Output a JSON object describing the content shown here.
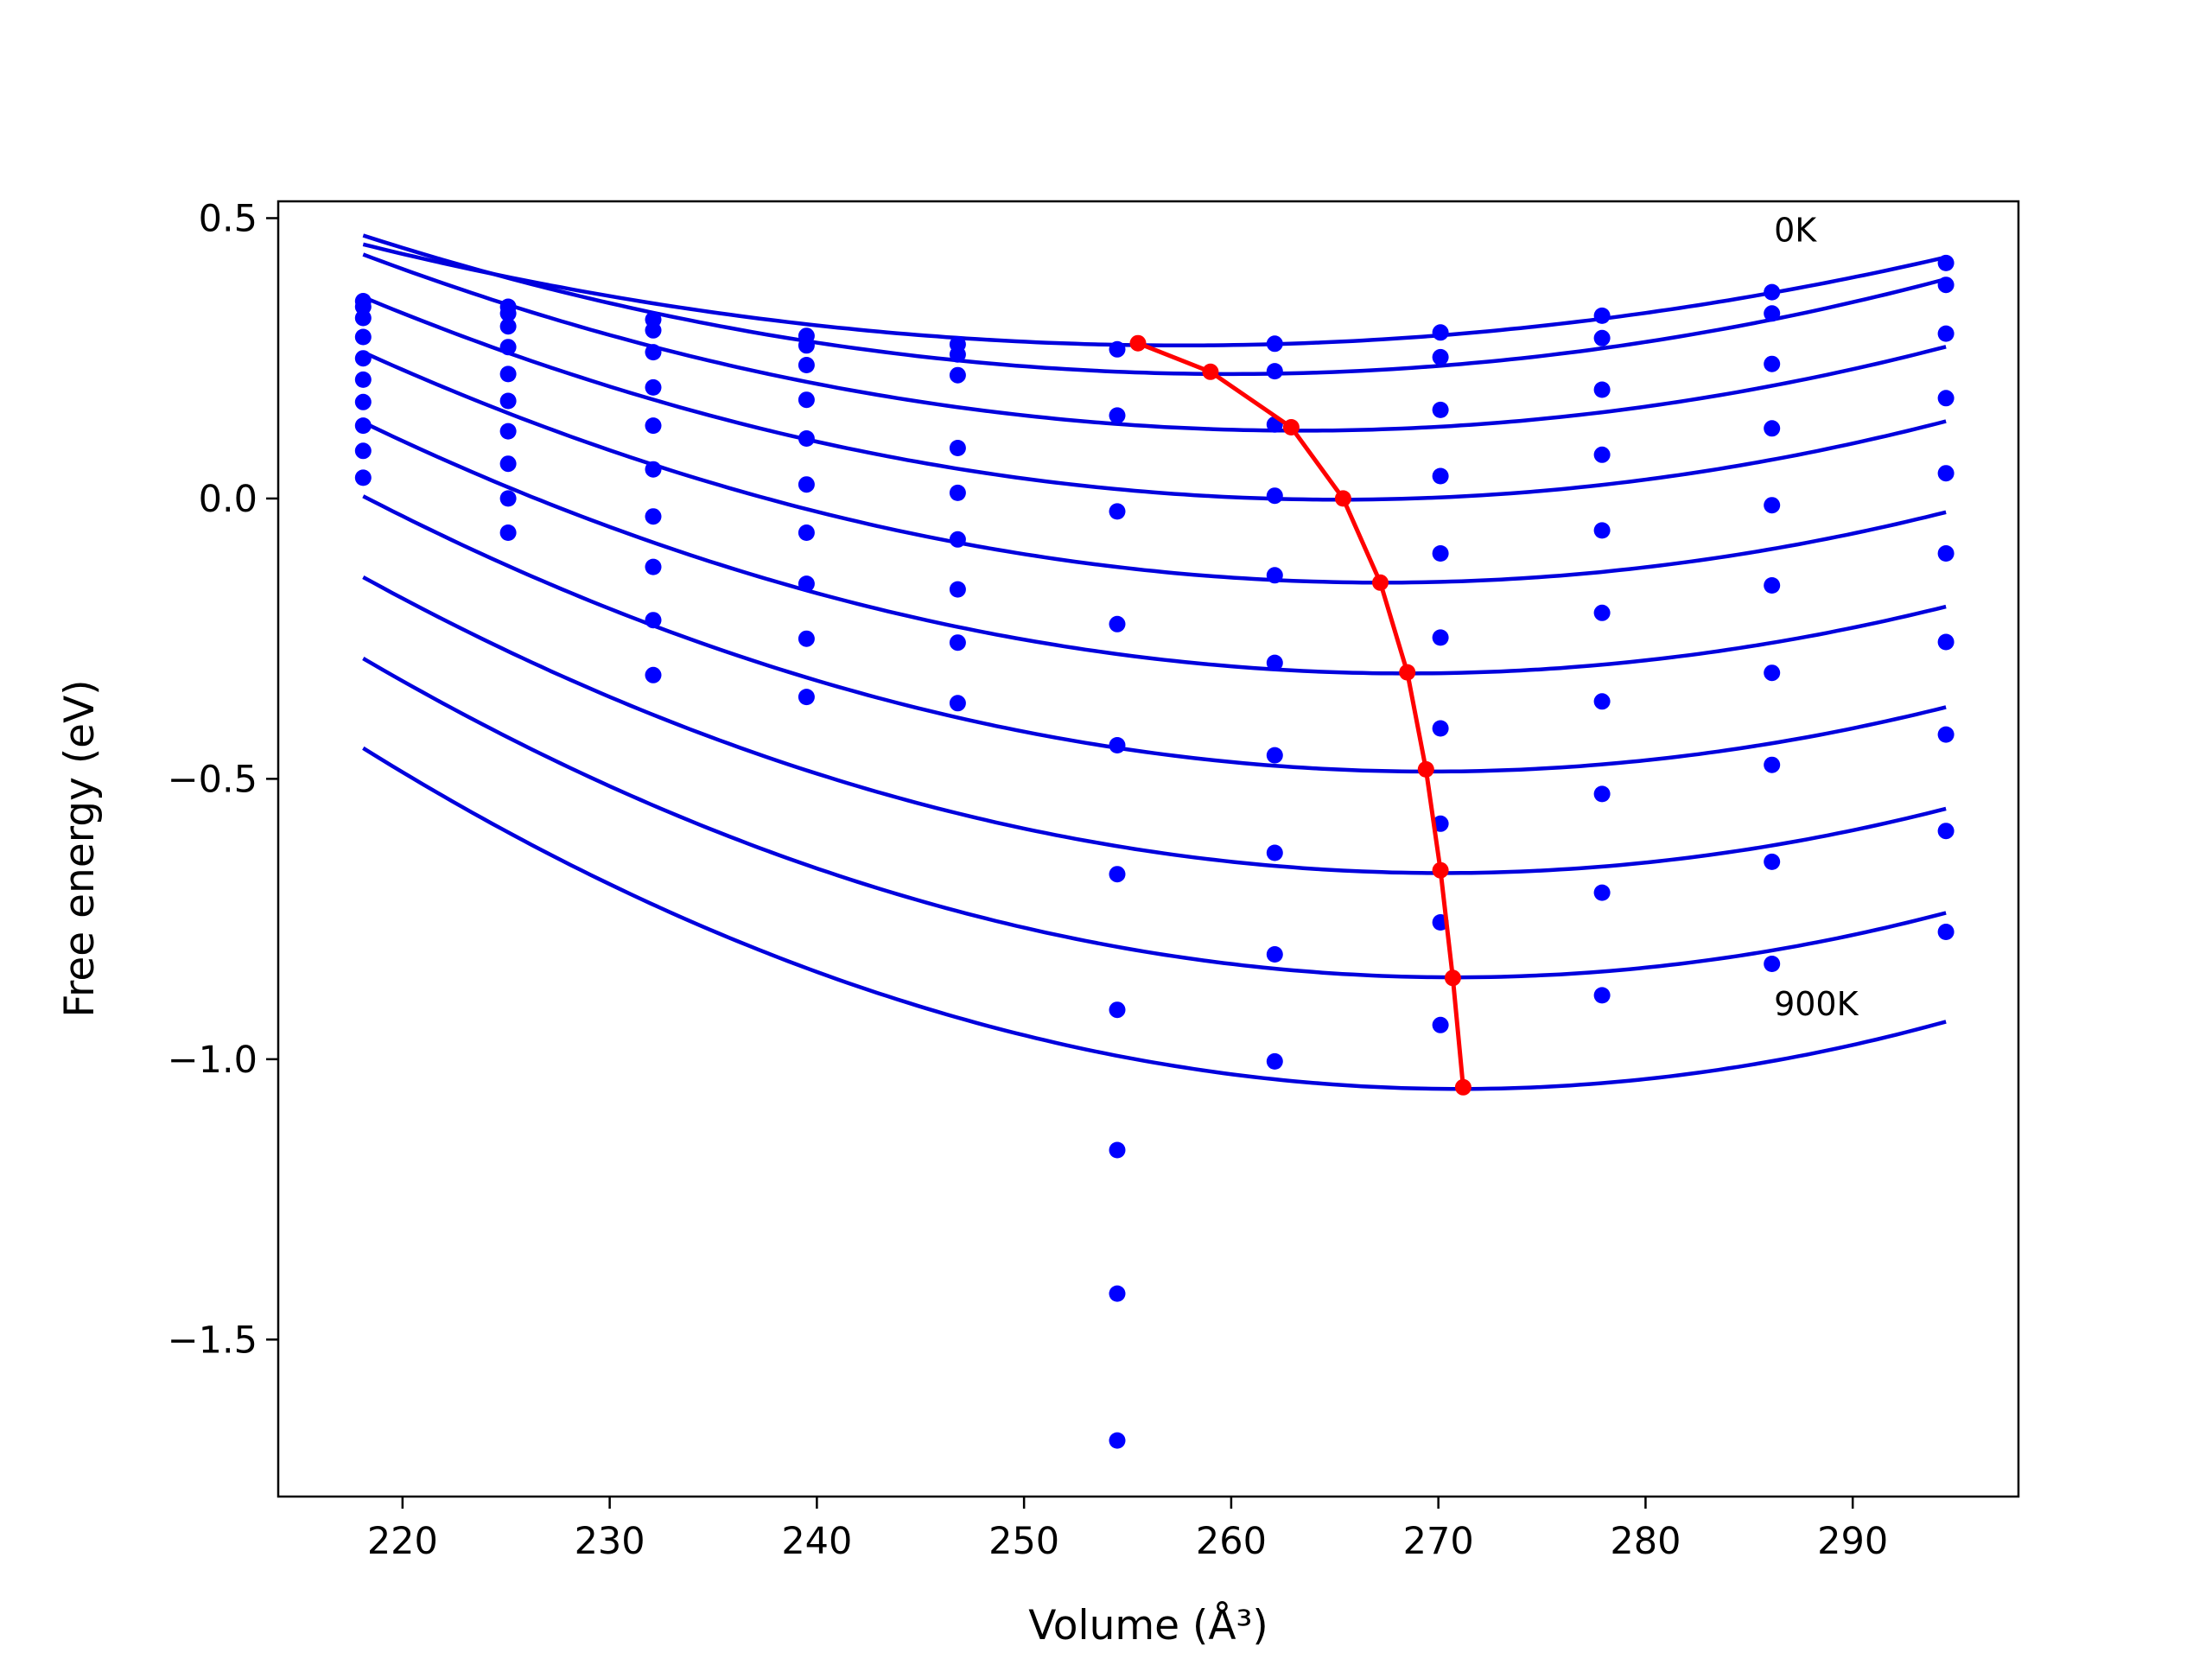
{
  "chart_data": {
    "type": "scatter",
    "xlabel": "Volume (Å³)",
    "ylabel": "Free energy (eV)",
    "xlim": [
      214,
      298
    ],
    "ylim": [
      -1.78,
      0.53
    ],
    "grid": false,
    "xticks": [
      220,
      230,
      240,
      250,
      260,
      270,
      280,
      290
    ],
    "yticks": [
      0.5,
      0.0,
      -0.5,
      -1.0,
      -1.5
    ],
    "xtick_labels": [
      "220",
      "230",
      "240",
      "250",
      "260",
      "270",
      "280",
      "290"
    ],
    "ytick_labels": [
      "0.5",
      "0.0",
      "−0.5",
      "−1.0",
      "−1.5"
    ],
    "annotations": [
      {
        "text": "0K",
        "x": 286.2,
        "y": 0.48
      },
      {
        "text": "900K",
        "x": 286.2,
        "y": -0.9
      }
    ],
    "colors": {
      "points": "#0000ff",
      "fits": "#0000dd",
      "minima": "#ff0000",
      "axes": "#000000"
    },
    "x_volumes": [
      218.1,
      225.1,
      232.1,
      239.5,
      246.8,
      254.5,
      262.1,
      270.1,
      277.9,
      286.1,
      294.5
    ],
    "point_series": [
      [
        0.352,
        0.342,
        0.319,
        0.29,
        0.275,
        0.266,
        0.276,
        0.296,
        0.326,
        0.368,
        0.42
      ],
      [
        0.342,
        0.33,
        0.3,
        0.273,
        0.257,
        0.148,
        0.227,
        0.252,
        0.286,
        0.33,
        0.381
      ],
      [
        0.322,
        0.307,
        0.261,
        0.238,
        0.22,
        -0.023,
        0.132,
        0.158,
        0.194,
        0.24,
        0.294
      ],
      [
        0.288,
        0.27,
        0.198,
        0.176,
        0.09,
        -0.224,
        0.005,
        0.04,
        0.078,
        0.125,
        0.179
      ],
      [
        0.25,
        0.222,
        0.13,
        0.107,
        0.01,
        -0.44,
        -0.137,
        -0.098,
        -0.057,
        -0.012,
        0.045
      ],
      [
        0.212,
        0.174,
        0.052,
        0.025,
        -0.073,
        -0.67,
        -0.293,
        -0.248,
        -0.204,
        -0.155,
        -0.098
      ],
      [
        0.172,
        0.12,
        -0.032,
        -0.061,
        -0.162,
        -0.912,
        -0.458,
        -0.41,
        -0.362,
        -0.311,
        -0.256
      ],
      [
        0.13,
        0.062,
        -0.122,
        -0.152,
        -0.257,
        -1.162,
        -0.632,
        -0.58,
        -0.527,
        -0.475,
        -0.421
      ],
      [
        0.085,
        0.0,
        -0.217,
        -0.25,
        -0.365,
        -1.418,
        -0.813,
        -0.756,
        -0.703,
        -0.648,
        -0.593
      ],
      [
        0.037,
        -0.061,
        -0.315,
        -0.354,
        null,
        -1.68,
        -1.004,
        -0.939,
        -0.886,
        -0.83,
        -0.773
      ]
    ],
    "fit_curves": [
      {
        "a": 0.0001155,
        "vmin": 257.6,
        "fmin": 0.273
      },
      {
        "a": 0.0001414,
        "vmin": 259.9,
        "fmin": 0.222
      },
      {
        "a": 0.0001538,
        "vmin": 263.3,
        "fmin": 0.121
      },
      {
        "a": 0.0001628,
        "vmin": 265.2,
        "fmin": -0.002
      },
      {
        "a": 0.0001697,
        "vmin": 267.3,
        "fmin": -0.15
      },
      {
        "a": 0.0001763,
        "vmin": 268.5,
        "fmin": -0.312
      },
      {
        "a": 0.0001852,
        "vmin": 269.6,
        "fmin": -0.487
      },
      {
        "a": 0.0001944,
        "vmin": 270.2,
        "fmin": -0.668
      },
      {
        "a": 0.0002048,
        "vmin": 270.8,
        "fmin": -0.854
      },
      {
        "a": 0.0002172,
        "vmin": 271.0,
        "fmin": -1.053
      }
    ],
    "fit_x_range": [
      218.1,
      294.5
    ],
    "minima_path": {
      "x": [
        255.5,
        259.0,
        262.9,
        265.4,
        267.2,
        268.5,
        269.4,
        270.1,
        270.7,
        271.2
      ],
      "y": [
        0.277,
        0.226,
        0.127,
        0.0,
        -0.15,
        -0.31,
        -0.483,
        -0.663,
        -0.855,
        -1.05
      ]
    }
  }
}
